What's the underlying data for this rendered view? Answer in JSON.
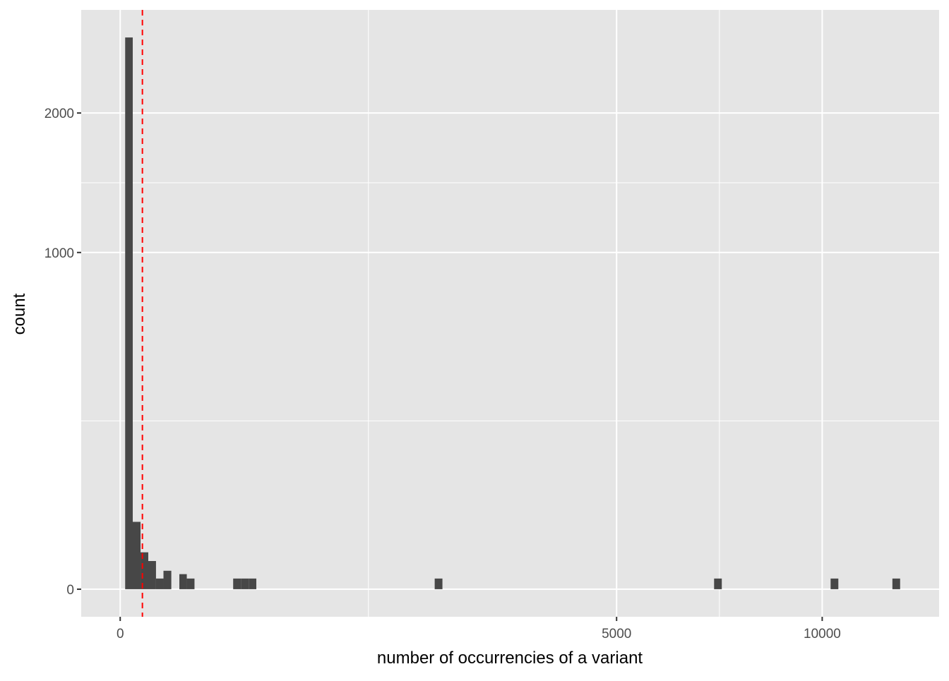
{
  "chart_data": {
    "type": "bar",
    "subtype": "histogram",
    "title": "",
    "xlabel": "number of occurrencies of a variant",
    "ylabel": "count",
    "x_scale": "sqrt",
    "y_scale": "sqrt",
    "xlim": [
      0,
      12343
    ],
    "ylim": [
      0,
      2685
    ],
    "x_ticks": [
      0,
      5000,
      10000
    ],
    "x_tick_labels": [
      "0",
      "5000",
      "10000"
    ],
    "y_ticks": [
      0,
      1000,
      2000
    ],
    "y_tick_labels": [
      "0",
      "1000",
      "2000"
    ],
    "grid": true,
    "bins": [
      {
        "xmin": 0.5,
        "xmax": 3.2,
        "count": 2685
      },
      {
        "xmin": 3.2,
        "xmax": 8.4,
        "count": 40
      },
      {
        "xmin": 8.4,
        "xmax": 16,
        "count": 12
      },
      {
        "xmin": 16,
        "xmax": 26,
        "count": 7
      },
      {
        "xmin": 26,
        "xmax": 38,
        "count": 1
      },
      {
        "xmin": 38,
        "xmax": 53,
        "count": 3
      },
      {
        "xmin": 71,
        "xmax": 90,
        "count": 2
      },
      {
        "xmin": 90,
        "xmax": 112,
        "count": 1
      },
      {
        "xmin": 259,
        "xmax": 296,
        "count": 1
      },
      {
        "xmin": 296,
        "xmax": 335,
        "count": 1
      },
      {
        "xmin": 335,
        "xmax": 376,
        "count": 1
      },
      {
        "xmin": 2007,
        "xmax": 2107,
        "count": 1
      },
      {
        "xmin": 7157,
        "xmax": 7344,
        "count": 1
      },
      {
        "xmin": 10241,
        "xmax": 10465,
        "count": 1
      },
      {
        "xmin": 12100,
        "xmax": 12343,
        "count": 1
      }
    ],
    "reference_line": {
      "orientation": "vertical",
      "x": 10,
      "style": "dashed",
      "color": "#FF0000"
    },
    "bar_color": "#474747",
    "panel_color": "#E5E5E5"
  }
}
